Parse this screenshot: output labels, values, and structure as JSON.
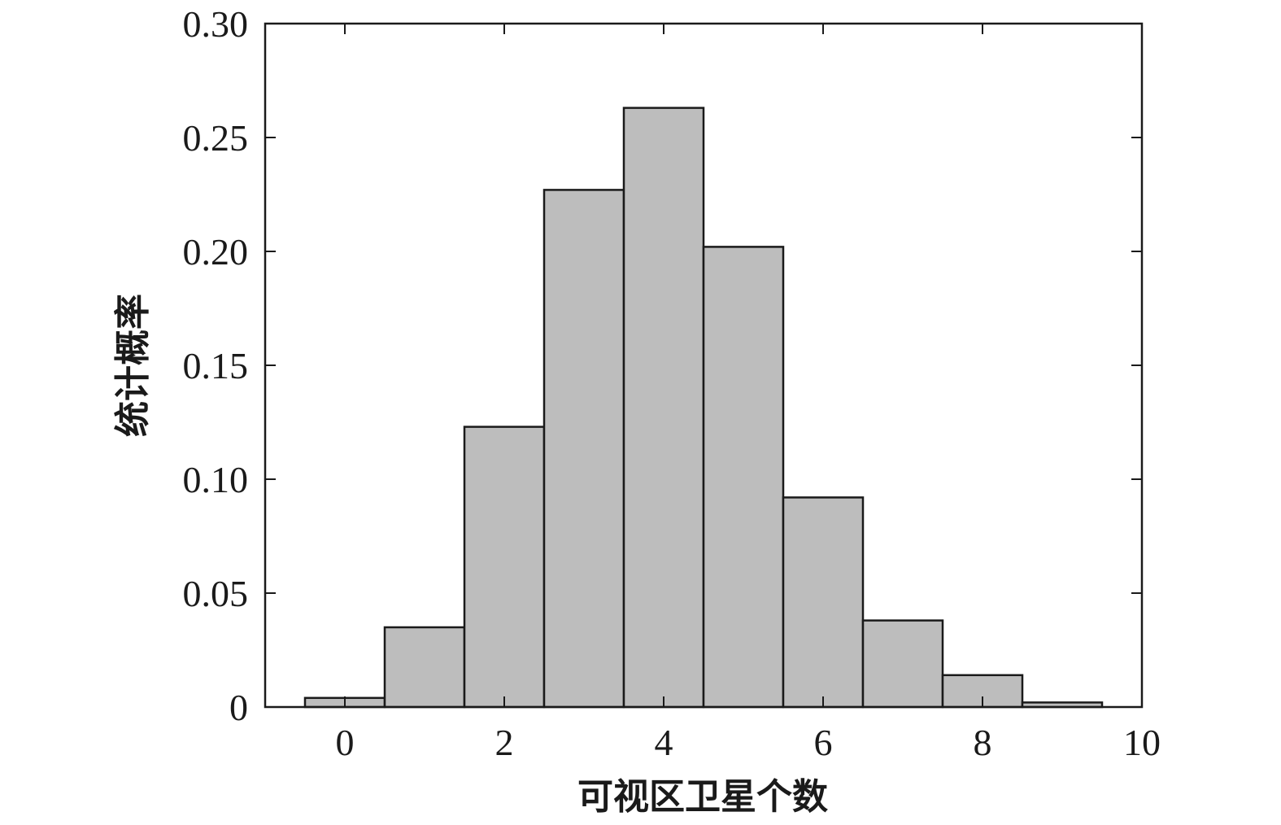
{
  "chart_data": {
    "type": "bar",
    "title": "",
    "xlabel": "可视区卫星个数",
    "ylabel": "统计概率",
    "categories": [
      0,
      1,
      2,
      3,
      4,
      5,
      6,
      7,
      8,
      9
    ],
    "values": [
      0.004,
      0.035,
      0.123,
      0.227,
      0.263,
      0.202,
      0.092,
      0.038,
      0.014,
      0.002
    ],
    "xlim": [
      -1,
      10
    ],
    "ylim": [
      0,
      0.3
    ],
    "xticks": [
      0,
      2,
      4,
      6,
      8,
      10
    ],
    "xtick_labels": [
      "0",
      "2",
      "4",
      "6",
      "8",
      "10"
    ],
    "yticks": [
      0,
      0.05,
      0.1,
      0.15,
      0.2,
      0.25,
      0.3
    ],
    "ytick_labels": [
      "0",
      "0.05",
      "0.10",
      "0.15",
      "0.20",
      "0.25",
      "0.30"
    ],
    "bar_width": 1,
    "bar_color": "#bdbdbd",
    "edge_color": "#1a1a1a",
    "grid": false,
    "legend": false
  }
}
